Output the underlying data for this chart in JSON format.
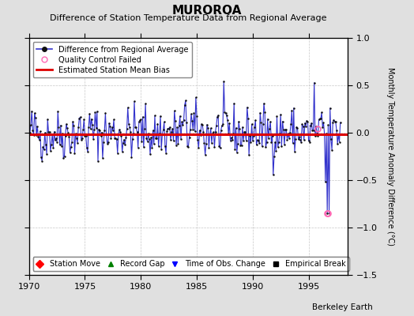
{
  "title": "MUROROA",
  "subtitle": "Difference of Station Temperature Data from Regional Average",
  "ylabel": "Monthly Temperature Anomaly Difference (°C)",
  "xlim": [
    1970,
    1998.5
  ],
  "ylim": [
    -1.5,
    1.0
  ],
  "yticks": [
    -1.5,
    -1.0,
    -0.5,
    0,
    0.5,
    1.0
  ],
  "xticks": [
    1970,
    1975,
    1980,
    1985,
    1990,
    1995
  ],
  "bias_value": -0.02,
  "background_color": "#e0e0e0",
  "plot_bg_color": "#ffffff",
  "grid_color": "#b0b0b0",
  "line_color": "#3333cc",
  "marker_color": "#111111",
  "bias_color": "#dd0000",
  "qc_color": "#ff69b4",
  "berkeley_earth_text": "Berkeley Earth",
  "seed": 42,
  "title_fontsize": 11,
  "subtitle_fontsize": 8,
  "ylabel_fontsize": 7,
  "tick_fontsize": 8,
  "legend_fontsize": 7
}
